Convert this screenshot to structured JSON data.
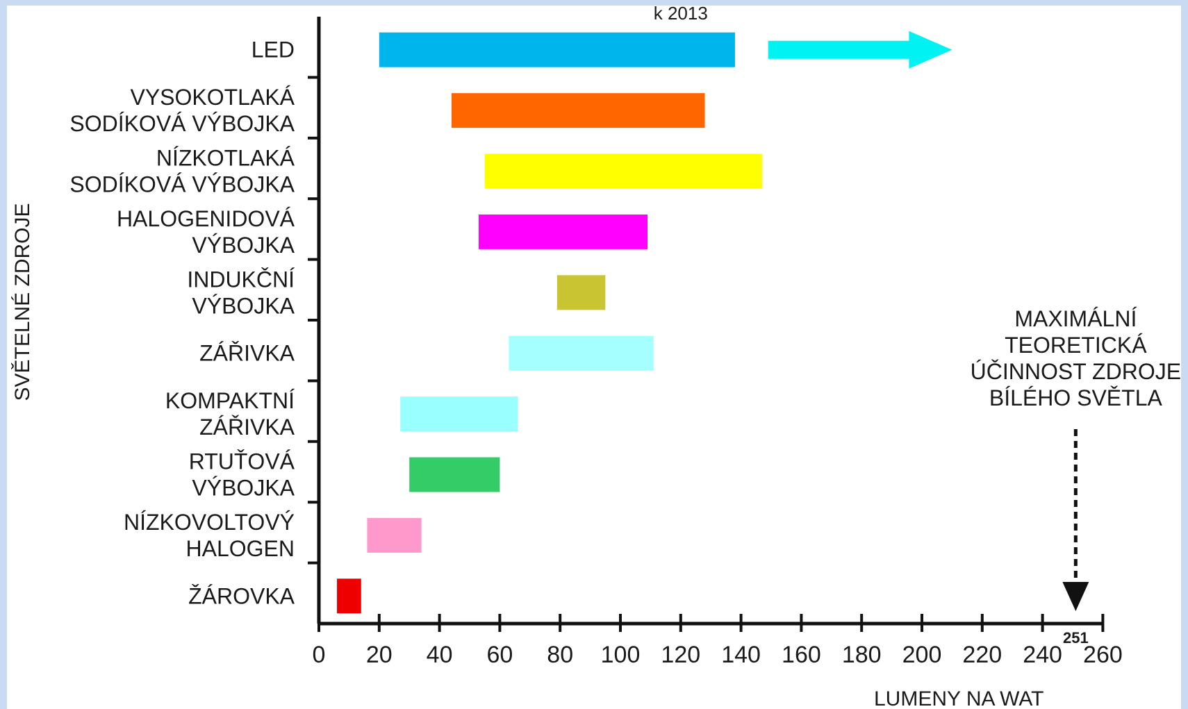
{
  "chart_data": {
    "type": "bar",
    "orientation": "horizontal-range",
    "title": "",
    "xlabel": "LUMENY NA WAT",
    "ylabel": "SVĚTELNÉ ZDROJE",
    "xlim": [
      0,
      260
    ],
    "x_ticks": [
      "0",
      "20",
      "40",
      "60",
      "80",
      "100",
      "120",
      "140",
      "160",
      "180",
      "200",
      "220",
      "240",
      "260"
    ],
    "grid": false,
    "legend": "none",
    "categories": [
      [
        "LED"
      ],
      [
        "VYSOKOTLAKÁ",
        "SODÍKOVÁ VÝBOJKA"
      ],
      [
        "NÍZKOTLAKÁ",
        "SODÍKOVÁ VÝBOJKA"
      ],
      [
        "HALOGENIDOVÁ",
        "VÝBOJKA"
      ],
      [
        "INDUKČNÍ",
        "VÝBOJKA"
      ],
      [
        "ZÁŘIVKA"
      ],
      [
        "KOMPAKTNÍ",
        "ZÁŘIVKA"
      ],
      [
        "RTUŤOVÁ",
        "VÝBOJKA"
      ],
      [
        "NÍZKOVOLTOVÝ",
        "HALOGEN"
      ],
      [
        "ŽÁROVKA"
      ]
    ],
    "ranges": [
      [
        20,
        138
      ],
      [
        44,
        128
      ],
      [
        55,
        147
      ],
      [
        53,
        109
      ],
      [
        79,
        95
      ],
      [
        63,
        111
      ],
      [
        27,
        66
      ],
      [
        30,
        60
      ],
      [
        16,
        34
      ],
      [
        6,
        14
      ]
    ],
    "colors": [
      "#00b4ec",
      "#ff6600",
      "#ffff00",
      "#ff00ff",
      "#c9c432",
      "#a6ffff",
      "#99ffff",
      "#33cc66",
      "#ff99cc",
      "#ee0000"
    ],
    "led_projection": {
      "label": "k 2013",
      "from": 149,
      "to": 210,
      "color": "#00f2f2"
    },
    "max_marker": {
      "value": 251,
      "value_label": "251",
      "label_lines": [
        "MAXIMÁLNÍ",
        "TEORETICKÁ",
        "ÚČINNOST ZDROJE",
        "BÍLÉHO SVĚTLA"
      ]
    }
  }
}
